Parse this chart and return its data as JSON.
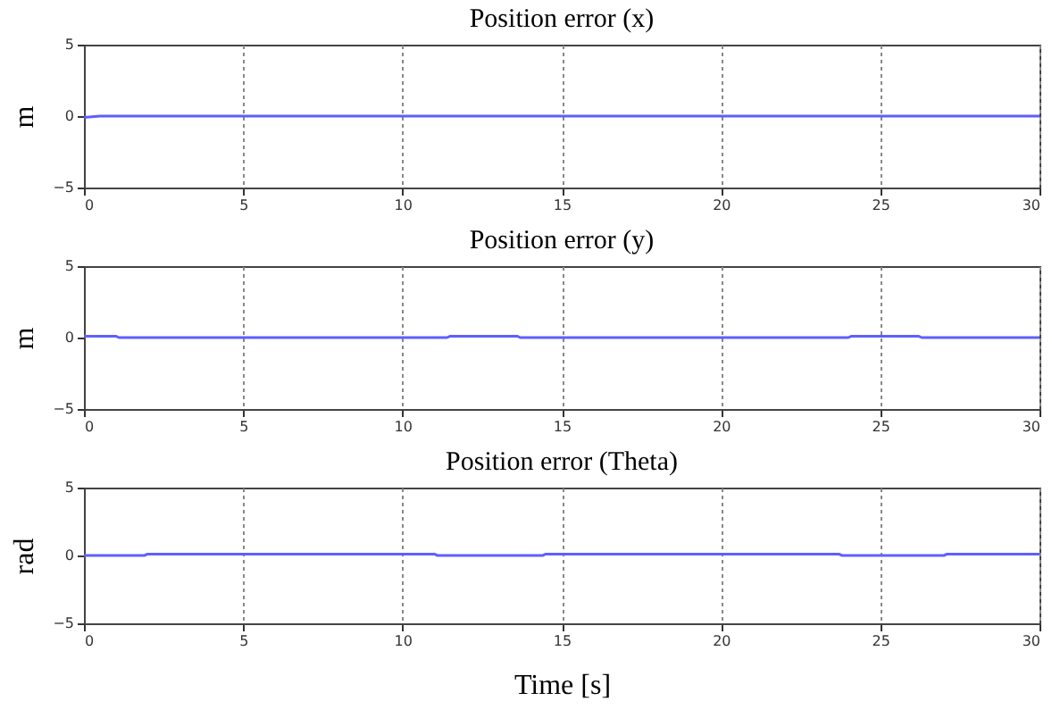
{
  "chart_data": [
    {
      "type": "line",
      "title": "Position error (x)",
      "ylabel": "m",
      "x": [
        0,
        0.5,
        1,
        30
      ],
      "series": [
        {
          "color": "#5f5fff",
          "values": [
            -0.1,
            0,
            0,
            0
          ]
        }
      ],
      "xlim": [
        0,
        30
      ],
      "xticks": [
        0,
        5,
        10,
        15,
        20,
        25,
        30
      ],
      "ylim": [
        -5,
        5
      ],
      "yticks": [
        -5,
        0,
        5
      ],
      "grid": "x",
      "line_style": "solid"
    },
    {
      "type": "line",
      "title": "Position error (y)",
      "ylabel": "m",
      "x": [
        0,
        1,
        1.1,
        11.4,
        11.5,
        13.6,
        13.7,
        24,
        24.1,
        26.2,
        26.3,
        30
      ],
      "series": [
        {
          "color": "#5f5fff",
          "values": [
            0.1,
            0.1,
            0,
            0,
            0.1,
            0.1,
            0,
            0,
            0.1,
            0.1,
            0,
            0
          ]
        }
      ],
      "xlim": [
        0,
        30
      ],
      "xticks": [
        0,
        5,
        10,
        15,
        20,
        25,
        30
      ],
      "ylim": [
        -5,
        5
      ],
      "yticks": [
        -5,
        0,
        5
      ],
      "grid": "x",
      "line_style": "solid"
    },
    {
      "type": "line",
      "title": "Position error (Theta)",
      "ylabel": "rad",
      "xlabel": "Time [s]",
      "x": [
        0,
        1.9,
        2,
        11,
        11.1,
        14.4,
        14.5,
        23.7,
        23.8,
        27,
        27.1,
        30
      ],
      "series": [
        {
          "color": "#5f5fff",
          "values": [
            0,
            0,
            0.1,
            0.1,
            0,
            0,
            0.1,
            0.1,
            0,
            0,
            0.1,
            0.1
          ]
        }
      ],
      "xlim": [
        0,
        30
      ],
      "xticks": [
        0,
        5,
        10,
        15,
        20,
        25,
        30
      ],
      "ylim": [
        -5,
        5
      ],
      "yticks": [
        -5,
        0,
        5
      ],
      "grid": "x",
      "line_style": "solid"
    }
  ]
}
